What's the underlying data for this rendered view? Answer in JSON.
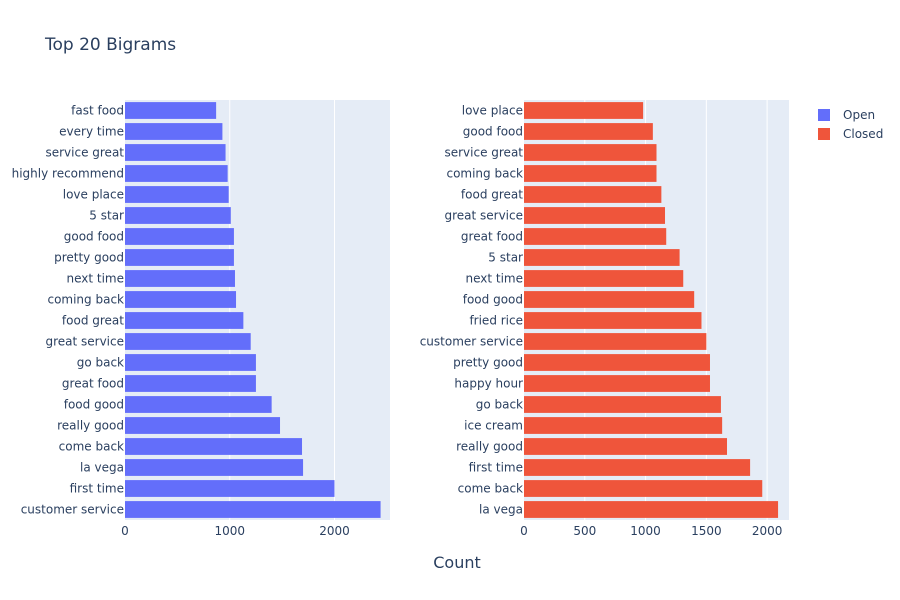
{
  "chart_data": {
    "type": "bar",
    "orientation": "horizontal",
    "title": "Top 20 Bigrams",
    "xlabel": "Count",
    "legend_position": "top-right",
    "grid": true,
    "panels": [
      {
        "series_name": "Open",
        "color": "#636efa",
        "xlim": [
          0,
          2530
        ],
        "xticks": [
          0,
          1000,
          2000
        ],
        "categories": [
          "customer service",
          "first time",
          "la vega",
          "come back",
          "really good",
          "food good",
          "great food",
          "go back",
          "great service",
          "food great",
          "coming back",
          "next time",
          "pretty good",
          "good food",
          "5 star",
          "love place",
          "highly recommend",
          "service great",
          "every time",
          "fast food"
        ],
        "values": [
          2440,
          2000,
          1700,
          1690,
          1480,
          1400,
          1250,
          1250,
          1200,
          1130,
          1060,
          1050,
          1040,
          1040,
          1010,
          990,
          980,
          960,
          930,
          870
        ]
      },
      {
        "series_name": "Closed",
        "color": "#ef553b",
        "xlim": [
          0,
          2180
        ],
        "xticks": [
          0,
          500,
          1000,
          1500,
          2000
        ],
        "categories": [
          "la vega",
          "come back",
          "first time",
          "really good",
          "ice cream",
          "go back",
          "happy hour",
          "pretty good",
          "customer service",
          "fried rice",
          "food good",
          "next time",
          "5 star",
          "great food",
          "great service",
          "food great",
          "coming back",
          "service great",
          "good food",
          "love place"
        ],
        "values": [
          2090,
          1960,
          1860,
          1670,
          1630,
          1620,
          1530,
          1530,
          1500,
          1460,
          1400,
          1310,
          1280,
          1170,
          1160,
          1130,
          1090,
          1090,
          1060,
          980
        ]
      }
    ]
  }
}
